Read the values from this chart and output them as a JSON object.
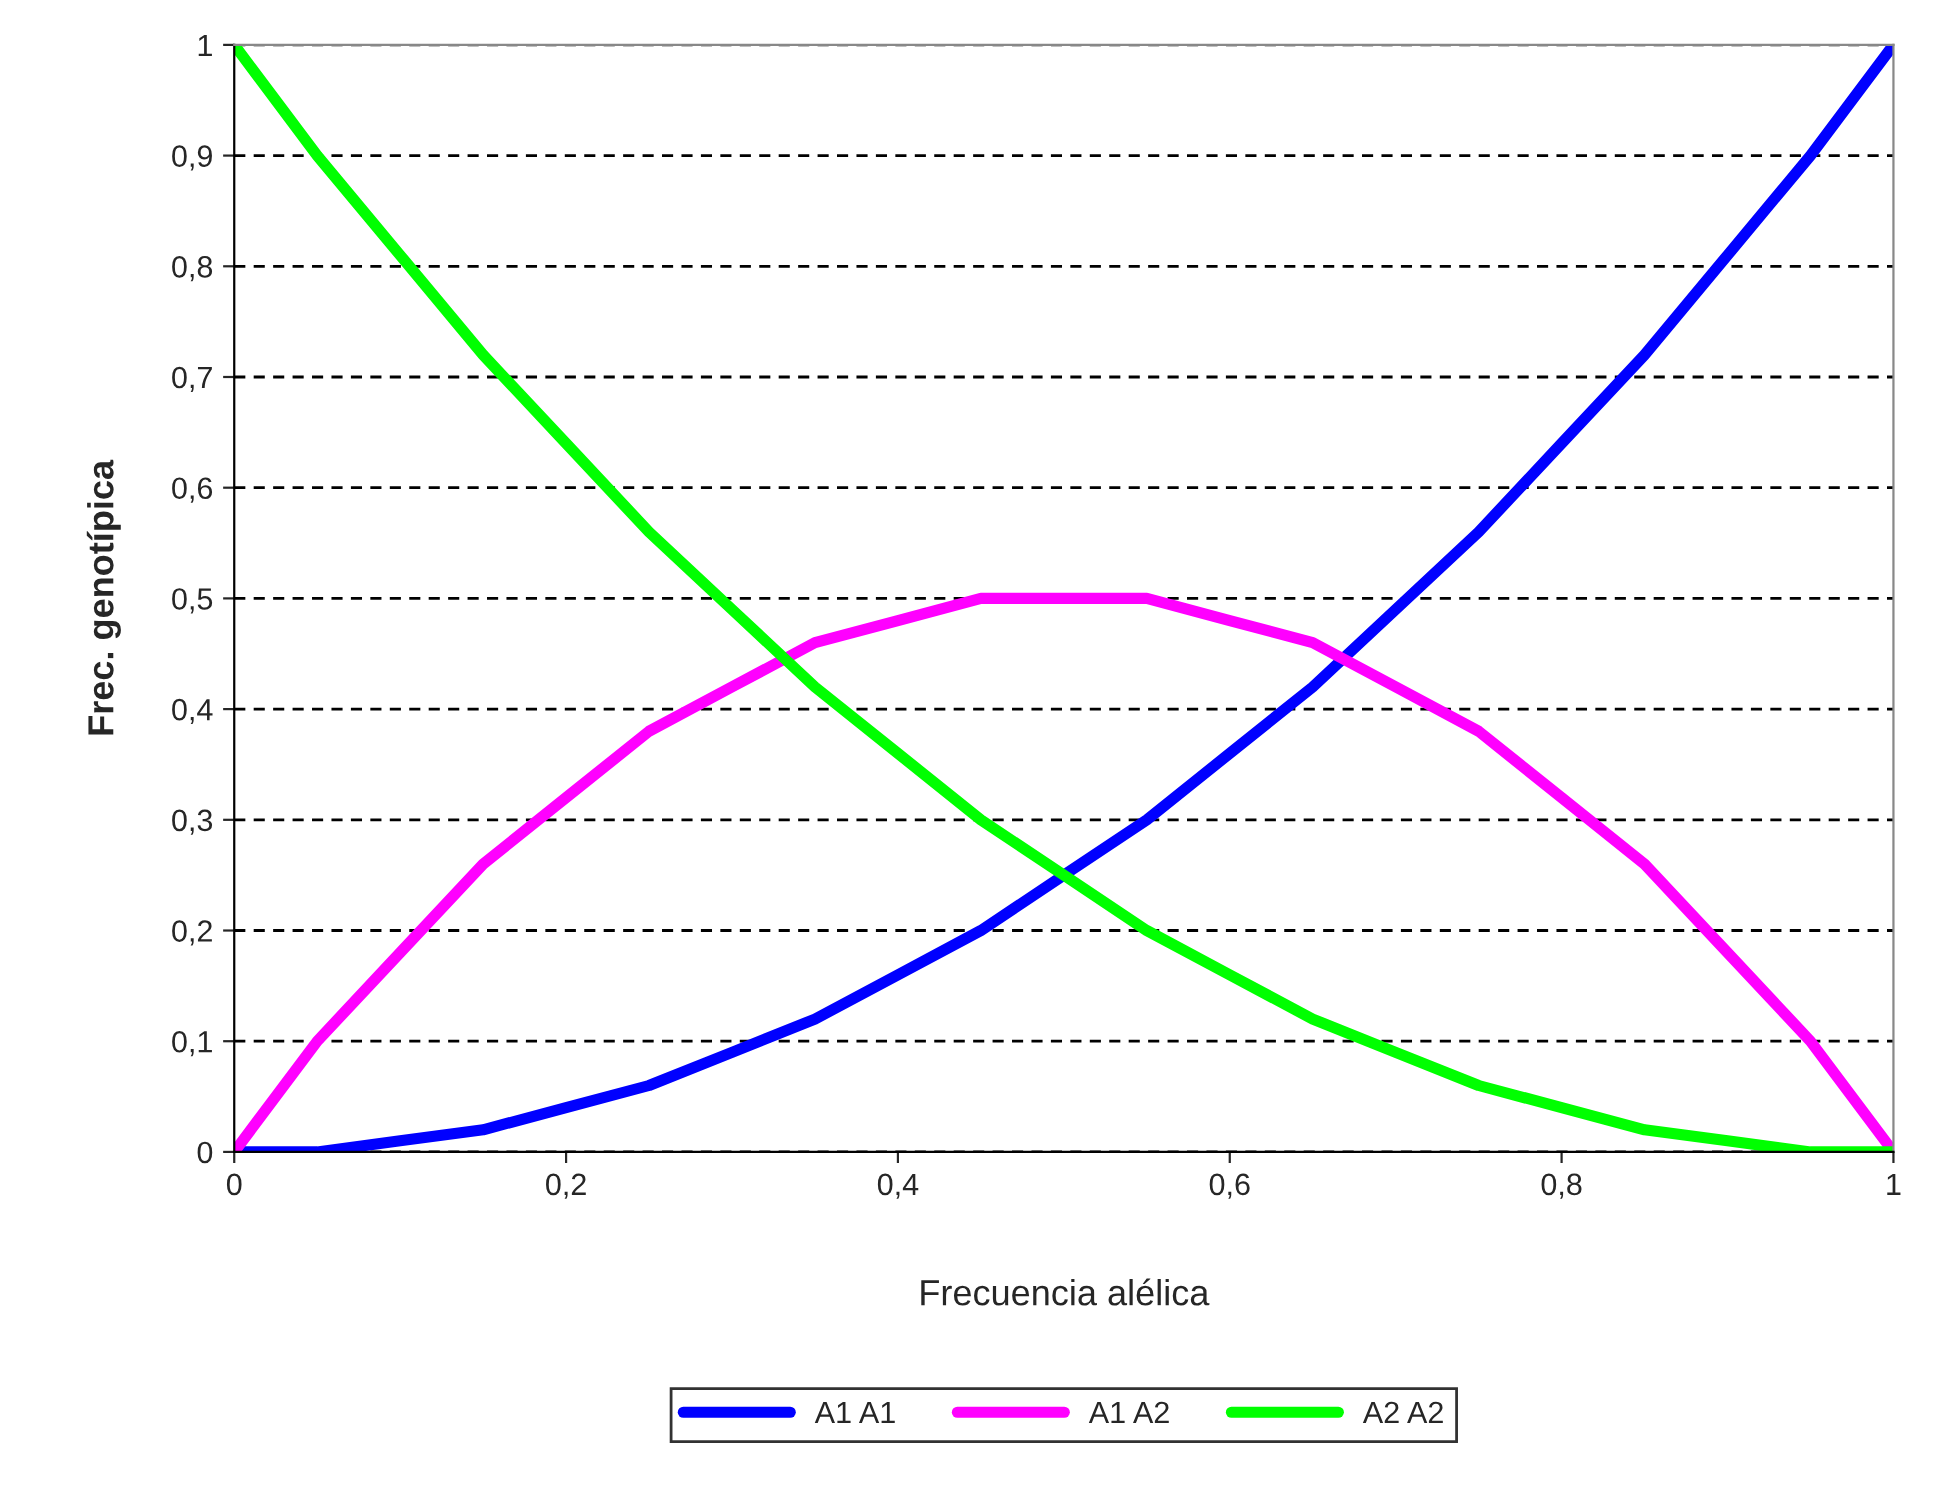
{
  "chart_data": {
    "type": "line",
    "xlabel": "Frecuencia alélica",
    "ylabel": "Frec. genotípica",
    "x": [
      0,
      0.05,
      0.1,
      0.15,
      0.2,
      0.25,
      0.3,
      0.35,
      0.4,
      0.45,
      0.5,
      0.55,
      0.6,
      0.65,
      0.7,
      0.75,
      0.8,
      0.85,
      0.9,
      0.95,
      1
    ],
    "series": [
      {
        "name": "A1 A1",
        "color": "#0000ff",
        "values": [
          0,
          0,
          0.01,
          0.02,
          0.04,
          0.06,
          0.09,
          0.12,
          0.16,
          0.2,
          0.25,
          0.3,
          0.36,
          0.42,
          0.49,
          0.56,
          0.64,
          0.72,
          0.81,
          0.9,
          1
        ]
      },
      {
        "name": "A1 A2",
        "color": "#ff00ff",
        "values": [
          0,
          0.1,
          0.18,
          0.26,
          0.32,
          0.38,
          0.42,
          0.46,
          0.48,
          0.5,
          0.5,
          0.5,
          0.48,
          0.46,
          0.42,
          0.38,
          0.32,
          0.26,
          0.18,
          0.1,
          0
        ]
      },
      {
        "name": "A2 A2",
        "color": "#00ff00",
        "values": [
          1,
          0.9,
          0.81,
          0.72,
          0.64,
          0.56,
          0.49,
          0.42,
          0.36,
          0.3,
          0.25,
          0.2,
          0.16,
          0.12,
          0.09,
          0.06,
          0.04,
          0.02,
          0.01,
          0,
          0
        ]
      }
    ],
    "xlim": [
      0,
      1
    ],
    "ylim": [
      0,
      1
    ],
    "xticks": [
      0,
      {
        "value": 0.2,
        "label": "0,2"
      },
      {
        "value": 0.4,
        "label": "0,4"
      },
      {
        "value": 0.6,
        "label": "0,6"
      },
      {
        "value": 0.8,
        "label": "0,8"
      },
      1
    ],
    "yticks": [
      0,
      {
        "value": 0.1,
        "label": "0,1"
      },
      {
        "value": 0.2,
        "label": "0,2"
      },
      {
        "value": 0.3,
        "label": "0,3"
      },
      {
        "value": 0.4,
        "label": "0,4"
      },
      {
        "value": 0.5,
        "label": "0,5"
      },
      {
        "value": 0.6,
        "label": "0,6"
      },
      {
        "value": 0.7,
        "label": "0,7"
      },
      {
        "value": 0.8,
        "label": "0,8"
      },
      {
        "value": 0.9,
        "label": "0,9"
      },
      1
    ],
    "grid": "y",
    "legend": "bottom",
    "line_style": "solid",
    "marker": "none"
  }
}
